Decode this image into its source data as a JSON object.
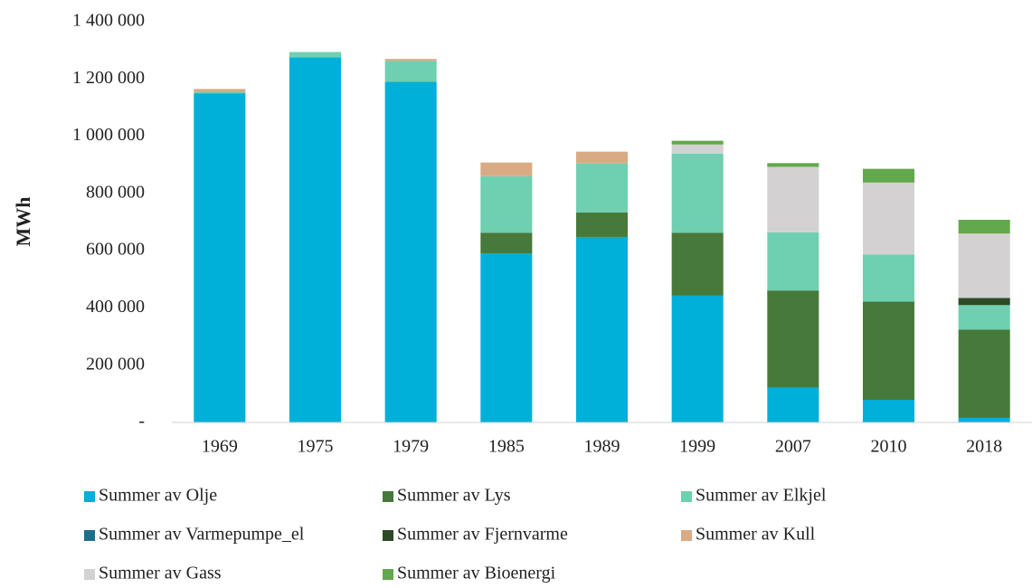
{
  "chart_data": {
    "type": "stacked_bar",
    "y_axis_label": "MWh",
    "categories": [
      "1969",
      "1975",
      "1979",
      "1985",
      "1989",
      "1999",
      "2007",
      "2010",
      "2018"
    ],
    "series": [
      {
        "name": "Summer av Olje",
        "color": "#00b0d8",
        "values": [
          1150000,
          1276000,
          1190000,
          590000,
          648000,
          444000,
          121000,
          79000,
          16000
        ]
      },
      {
        "name": "Summer av Lys",
        "color": "#47793a",
        "values": [
          0,
          0,
          0,
          73000,
          86000,
          219000,
          340000,
          343000,
          308000
        ]
      },
      {
        "name": "Summer av Elkjel",
        "color": "#6fcfb1",
        "values": [
          5000,
          18000,
          73000,
          197000,
          171000,
          276000,
          203000,
          165000,
          86000
        ]
      },
      {
        "name": "Summer av Varmepumpe_el",
        "color": "#1b6f8a",
        "values": [
          0,
          0,
          0,
          0,
          0,
          0,
          0,
          0,
          0
        ]
      },
      {
        "name": "Summer av Fjernvarme",
        "color": "#2b4a25",
        "values": [
          0,
          0,
          0,
          0,
          0,
          0,
          0,
          0,
          25000
        ]
      },
      {
        "name": "Summer av Kull",
        "color": "#d9ab85",
        "values": [
          10000,
          0,
          7000,
          48000,
          41000,
          0,
          0,
          0,
          0
        ]
      },
      {
        "name": "Summer av Gass",
        "color": "#d3d1d1",
        "values": [
          0,
          0,
          0,
          0,
          0,
          32000,
          229000,
          251000,
          225000
        ]
      },
      {
        "name": "Summer av Bioenergi",
        "color": "#62a84c",
        "values": [
          0,
          0,
          0,
          0,
          0,
          13000,
          13000,
          48000,
          48000
        ]
      }
    ],
    "ylim": [
      0,
      1400000
    ],
    "yticks": [
      {
        "value": 0,
        "label": "-"
      },
      {
        "value": 200000,
        "label": "200 000"
      },
      {
        "value": 400000,
        "label": "400 000"
      },
      {
        "value": 600000,
        "label": "600 000"
      },
      {
        "value": 800000,
        "label": "800 000"
      },
      {
        "value": 1000000,
        "label": "1 000 000"
      },
      {
        "value": 1200000,
        "label": "1 200 000"
      },
      {
        "value": 1400000,
        "label": "1 400 000"
      }
    ],
    "grid": false
  }
}
